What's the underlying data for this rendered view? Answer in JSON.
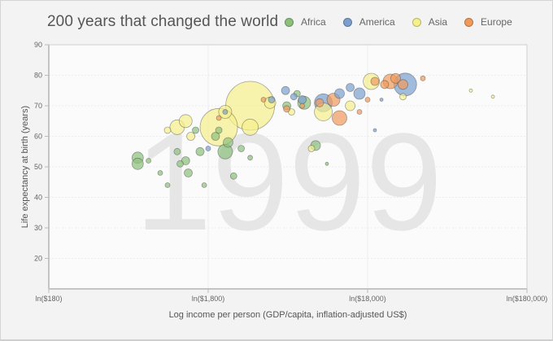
{
  "title": "200 years that changed the world",
  "legend": [
    {
      "label": "Africa",
      "color": "#8cc07a"
    },
    {
      "label": "America",
      "color": "#7b9fce"
    },
    {
      "label": "Asia",
      "color": "#f5f08c"
    },
    {
      "label": "Europe",
      "color": "#ef9a5b"
    }
  ],
  "year_label": "1999",
  "chart_data": {
    "type": "scatter",
    "title": "200 years that changed the world",
    "subtitle": "1999",
    "xlabel": "Log income per person (GDP/capita, inflation-adjusted US$)",
    "ylabel": "Life expectancy at birth (years)",
    "x_scale": "log",
    "xlim": [
      180,
      180000
    ],
    "ylim": [
      10,
      90
    ],
    "x_ticks": [
      "ln($180)",
      "ln($1,800)",
      "ln($18,000)",
      "ln($180,000)"
    ],
    "x_tick_values": [
      180,
      1800,
      18000,
      180000
    ],
    "y_ticks": [
      20,
      30,
      40,
      50,
      60,
      70,
      80,
      90
    ],
    "grid": true,
    "legend_position": "top-right",
    "series": [
      {
        "name": "Africa",
        "color": "#8cc07a",
        "points": [
          {
            "x": 650,
            "y": 53,
            "r": 7
          },
          {
            "x": 650,
            "y": 51,
            "r": 7
          },
          {
            "x": 760,
            "y": 52,
            "r": 3
          },
          {
            "x": 900,
            "y": 48,
            "r": 3
          },
          {
            "x": 1000,
            "y": 44,
            "r": 3
          },
          {
            "x": 1150,
            "y": 55,
            "r": 4
          },
          {
            "x": 1200,
            "y": 51,
            "r": 4
          },
          {
            "x": 1300,
            "y": 52,
            "r": 5
          },
          {
            "x": 1350,
            "y": 48,
            "r": 5
          },
          {
            "x": 1500,
            "y": 62,
            "r": 4
          },
          {
            "x": 1600,
            "y": 55,
            "r": 5
          },
          {
            "x": 1700,
            "y": 44,
            "r": 3
          },
          {
            "x": 2000,
            "y": 60,
            "r": 5
          },
          {
            "x": 2100,
            "y": 62,
            "r": 4
          },
          {
            "x": 2300,
            "y": 55,
            "r": 9
          },
          {
            "x": 2400,
            "y": 58,
            "r": 6
          },
          {
            "x": 2600,
            "y": 47,
            "r": 4
          },
          {
            "x": 2900,
            "y": 56,
            "r": 4
          },
          {
            "x": 3300,
            "y": 53,
            "r": 3
          },
          {
            "x": 5600,
            "y": 70,
            "r": 5
          },
          {
            "x": 6500,
            "y": 74,
            "r": 4
          },
          {
            "x": 7200,
            "y": 71,
            "r": 8
          },
          {
            "x": 8500,
            "y": 57,
            "r": 6
          },
          {
            "x": 10000,
            "y": 51,
            "r": 2
          }
        ]
      },
      {
        "name": "America",
        "color": "#7b9fce",
        "points": [
          {
            "x": 1800,
            "y": 56,
            "r": 3
          },
          {
            "x": 2300,
            "y": 68,
            "r": 3
          },
          {
            "x": 4500,
            "y": 72,
            "r": 4
          },
          {
            "x": 5500,
            "y": 75,
            "r": 5
          },
          {
            "x": 6200,
            "y": 73,
            "r": 4
          },
          {
            "x": 7000,
            "y": 72,
            "r": 5
          },
          {
            "x": 9500,
            "y": 71,
            "r": 11
          },
          {
            "x": 12000,
            "y": 74,
            "r": 6
          },
          {
            "x": 14000,
            "y": 76,
            "r": 5
          },
          {
            "x": 16000,
            "y": 74,
            "r": 7
          },
          {
            "x": 22000,
            "y": 72,
            "r": 2
          },
          {
            "x": 31000,
            "y": 77,
            "r": 14
          },
          {
            "x": 20000,
            "y": 62,
            "r": 2
          }
        ]
      },
      {
        "name": "Asia",
        "color": "#f5f08c",
        "points": [
          {
            "x": 1000,
            "y": 62,
            "r": 4
          },
          {
            "x": 1150,
            "y": 63,
            "r": 9
          },
          {
            "x": 1300,
            "y": 65,
            "r": 8
          },
          {
            "x": 1400,
            "y": 60,
            "r": 5
          },
          {
            "x": 2100,
            "y": 63,
            "r": 23
          },
          {
            "x": 2300,
            "y": 68,
            "r": 8
          },
          {
            "x": 3300,
            "y": 70,
            "r": 30
          },
          {
            "x": 3300,
            "y": 63,
            "r": 10
          },
          {
            "x": 4400,
            "y": 71,
            "r": 7
          },
          {
            "x": 6000,
            "y": 68,
            "r": 4
          },
          {
            "x": 8000,
            "y": 56,
            "r": 4
          },
          {
            "x": 9500,
            "y": 68,
            "r": 11
          },
          {
            "x": 14000,
            "y": 70,
            "r": 6
          },
          {
            "x": 19000,
            "y": 78,
            "r": 10
          },
          {
            "x": 30000,
            "y": 73,
            "r": 4
          },
          {
            "x": 80000,
            "y": 75,
            "r": 2
          },
          {
            "x": 110000,
            "y": 73,
            "r": 2
          }
        ]
      },
      {
        "name": "Europe",
        "color": "#ef9a5b",
        "points": [
          {
            "x": 2100,
            "y": 66,
            "r": 3
          },
          {
            "x": 4000,
            "y": 72,
            "r": 3
          },
          {
            "x": 5600,
            "y": 69,
            "r": 4
          },
          {
            "x": 7000,
            "y": 70,
            "r": 3
          },
          {
            "x": 9000,
            "y": 71,
            "r": 5
          },
          {
            "x": 11000,
            "y": 72,
            "r": 8
          },
          {
            "x": 12000,
            "y": 66,
            "r": 9
          },
          {
            "x": 16000,
            "y": 68,
            "r": 3
          },
          {
            "x": 18000,
            "y": 72,
            "r": 3
          },
          {
            "x": 20000,
            "y": 78,
            "r": 5
          },
          {
            "x": 23000,
            "y": 77,
            "r": 5
          },
          {
            "x": 25000,
            "y": 78,
            "r": 9
          },
          {
            "x": 27000,
            "y": 79,
            "r": 6
          },
          {
            "x": 30000,
            "y": 77,
            "r": 6
          },
          {
            "x": 40000,
            "y": 79,
            "r": 3
          }
        ]
      }
    ]
  },
  "axes": {
    "y_label": "Life expectancy at birth (years)",
    "x_label": "Log income per person (GDP/capita, inflation-adjusted US$)",
    "x_tick_labels": [
      "ln($180)",
      "ln($1,800)",
      "ln($18,000)",
      "ln($180,000)"
    ],
    "y_tick_labels": [
      "90",
      "80",
      "70",
      "60",
      "50",
      "40",
      "30",
      "20"
    ]
  }
}
